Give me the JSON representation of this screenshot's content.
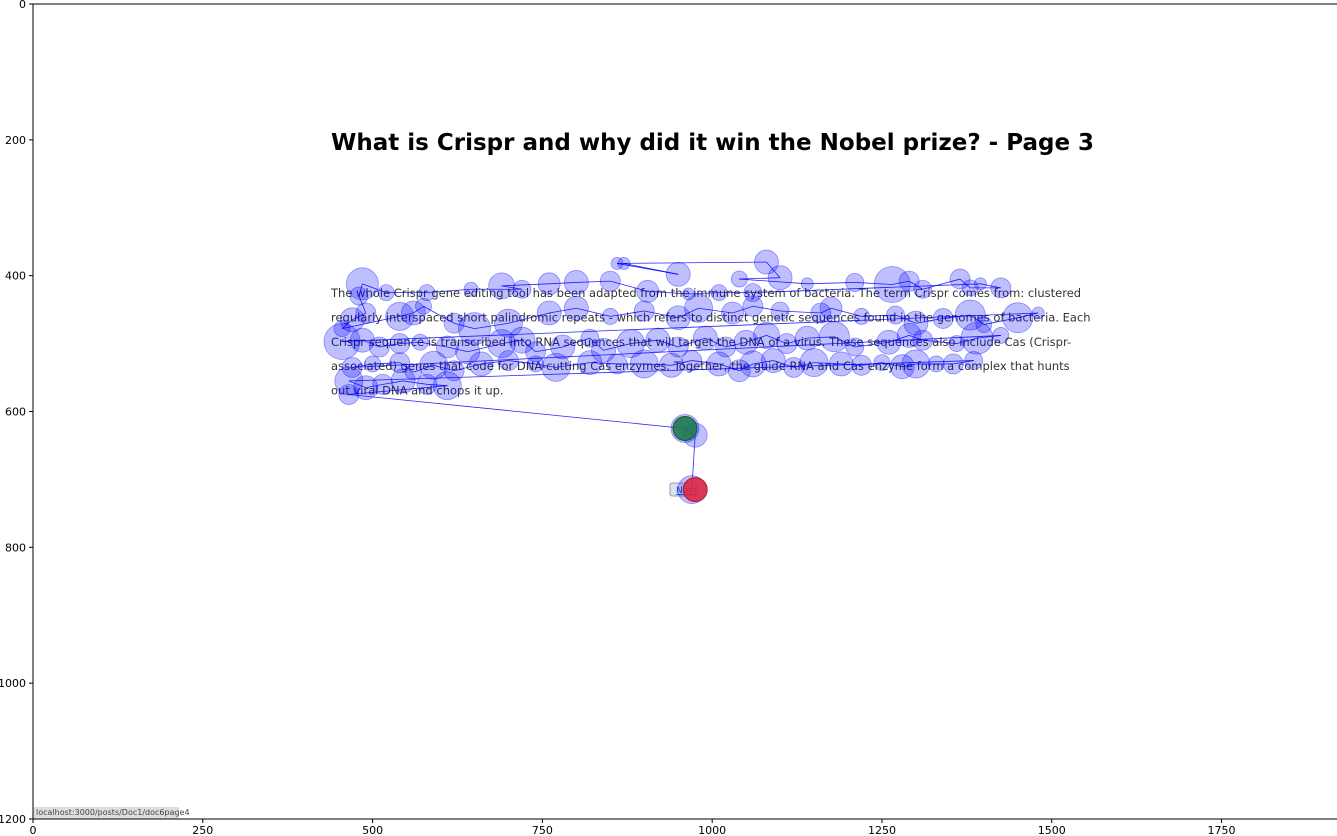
{
  "chart_data": {
    "type": "scatter",
    "xlim": [
      0,
      1920
    ],
    "ylim": [
      1200,
      0
    ],
    "xticks": [
      0,
      250,
      500,
      750,
      1000,
      1250,
      1500,
      1750
    ],
    "yticks": [
      0,
      200,
      400,
      600,
      800,
      1000,
      1200
    ],
    "grid": false,
    "page": {
      "title": "What is Crispr and why did it win the Nobel prize? - Page 3",
      "lines": [
        "The whole Crispr gene editing tool has been adapted from the immune system of bacteria. The term Crispr comes from: clustered",
        "regularly interspaced short palindromic repeats - which refers to distinct genetic sequences found in the genomes of bacteria. Each",
        "Crispr sequence is transcribed into RNA sequences that will target the DNA of a virus. These sequences also include Cas (Crispr-",
        "associated) genes that code for DNA-cutting Cas enzymes. Together, the guide RNA and Cas enzyme form a complex that hunts",
        "out viral DNA and chops it up."
      ],
      "next_button": "Next",
      "status_url": "localhost:3000/posts/Doc1/doc6page4"
    },
    "series": [
      {
        "color": "#0000ff",
        "points": [
          [
            870,
            382,
            6
          ],
          [
            950,
            398,
            12
          ],
          [
            860,
            382,
            6
          ],
          [
            1080,
            380,
            12
          ],
          [
            1100,
            403,
            12
          ],
          [
            1040,
            405,
            8
          ],
          [
            1140,
            412,
            6
          ],
          [
            1210,
            410,
            9
          ],
          [
            1265,
            413,
            18
          ],
          [
            1290,
            408,
            10
          ],
          [
            1310,
            420,
            9
          ],
          [
            1365,
            405,
            10
          ],
          [
            1380,
            418,
            8
          ],
          [
            1425,
            418,
            10
          ],
          [
            1395,
            412,
            6
          ],
          [
            1060,
            425,
            9
          ],
          [
            1010,
            425,
            8
          ],
          [
            965,
            427,
            6
          ],
          [
            905,
            423,
            11
          ],
          [
            850,
            408,
            10
          ],
          [
            800,
            410,
            12
          ],
          [
            760,
            412,
            11
          ],
          [
            690,
            415,
            13
          ],
          [
            720,
            420,
            9
          ],
          [
            645,
            420,
            7
          ],
          [
            580,
            425,
            8
          ],
          [
            520,
            425,
            8
          ],
          [
            485,
            412,
            16
          ],
          [
            480,
            430,
            9
          ],
          [
            490,
            455,
            10
          ],
          [
            470,
            465,
            12
          ],
          [
            455,
            478,
            8
          ],
          [
            540,
            460,
            14
          ],
          [
            560,
            455,
            12
          ],
          [
            575,
            445,
            8
          ],
          [
            620,
            470,
            10
          ],
          [
            650,
            478,
            16
          ],
          [
            700,
            470,
            14
          ],
          [
            760,
            455,
            12
          ],
          [
            800,
            448,
            12
          ],
          [
            850,
            460,
            8
          ],
          [
            900,
            452,
            10
          ],
          [
            950,
            462,
            12
          ],
          [
            980,
            448,
            14
          ],
          [
            1030,
            455,
            11
          ],
          [
            1060,
            445,
            10
          ],
          [
            1100,
            452,
            9
          ],
          [
            1160,
            455,
            10
          ],
          [
            1175,
            448,
            11
          ],
          [
            1220,
            460,
            8
          ],
          [
            1270,
            458,
            9
          ],
          [
            1300,
            470,
            12
          ],
          [
            1340,
            463,
            10
          ],
          [
            1380,
            458,
            15
          ],
          [
            1400,
            472,
            8
          ],
          [
            1450,
            462,
            15
          ],
          [
            1480,
            455,
            6
          ],
          [
            455,
            497,
            18
          ],
          [
            485,
            495,
            12
          ],
          [
            510,
            505,
            10
          ],
          [
            540,
            500,
            10
          ],
          [
            570,
            498,
            8
          ],
          [
            610,
            505,
            11
          ],
          [
            640,
            512,
            12
          ],
          [
            690,
            500,
            14
          ],
          [
            720,
            495,
            13
          ],
          [
            740,
            512,
            10
          ],
          [
            780,
            505,
            12
          ],
          [
            820,
            492,
            9
          ],
          [
            840,
            510,
            12
          ],
          [
            880,
            500,
            14
          ],
          [
            920,
            495,
            12
          ],
          [
            950,
            505,
            10
          ],
          [
            990,
            492,
            12
          ],
          [
            1020,
            505,
            10
          ],
          [
            1050,
            498,
            12
          ],
          [
            1080,
            488,
            13
          ],
          [
            1110,
            500,
            10
          ],
          [
            1140,
            492,
            12
          ],
          [
            1180,
            490,
            15
          ],
          [
            1210,
            505,
            9
          ],
          [
            1260,
            498,
            12
          ],
          [
            1290,
            488,
            12
          ],
          [
            1310,
            495,
            10
          ],
          [
            1360,
            500,
            8
          ],
          [
            1390,
            492,
            16
          ],
          [
            1425,
            488,
            8
          ],
          [
            470,
            535,
            10
          ],
          [
            500,
            530,
            8
          ],
          [
            540,
            528,
            10
          ],
          [
            560,
            542,
            8
          ],
          [
            590,
            532,
            14
          ],
          [
            620,
            540,
            10
          ],
          [
            660,
            530,
            12
          ],
          [
            700,
            525,
            10
          ],
          [
            740,
            530,
            8
          ],
          [
            770,
            535,
            14
          ],
          [
            820,
            528,
            12
          ],
          [
            860,
            530,
            10
          ],
          [
            900,
            530,
            14
          ],
          [
            940,
            532,
            12
          ],
          [
            970,
            525,
            10
          ],
          [
            1010,
            530,
            12
          ],
          [
            1040,
            540,
            11
          ],
          [
            1060,
            530,
            13
          ],
          [
            1090,
            525,
            12
          ],
          [
            1120,
            535,
            10
          ],
          [
            1150,
            528,
            14
          ],
          [
            1190,
            530,
            12
          ],
          [
            1220,
            532,
            10
          ],
          [
            1250,
            528,
            8
          ],
          [
            1280,
            534,
            12
          ],
          [
            1300,
            530,
            14
          ],
          [
            1330,
            530,
            8
          ],
          [
            1355,
            530,
            10
          ],
          [
            1385,
            525,
            9
          ],
          [
            465,
            555,
            14
          ],
          [
            490,
            565,
            12
          ],
          [
            515,
            560,
            10
          ],
          [
            545,
            555,
            12
          ],
          [
            580,
            560,
            10
          ],
          [
            610,
            562,
            14
          ],
          [
            465,
            575,
            10
          ],
          [
            960,
            625,
            14
          ],
          [
            975,
            635,
            12
          ],
          [
            970,
            715,
            14
          ]
        ]
      }
    ],
    "start_point": [
      960,
      625
    ],
    "end_point": [
      975,
      715
    ]
  }
}
